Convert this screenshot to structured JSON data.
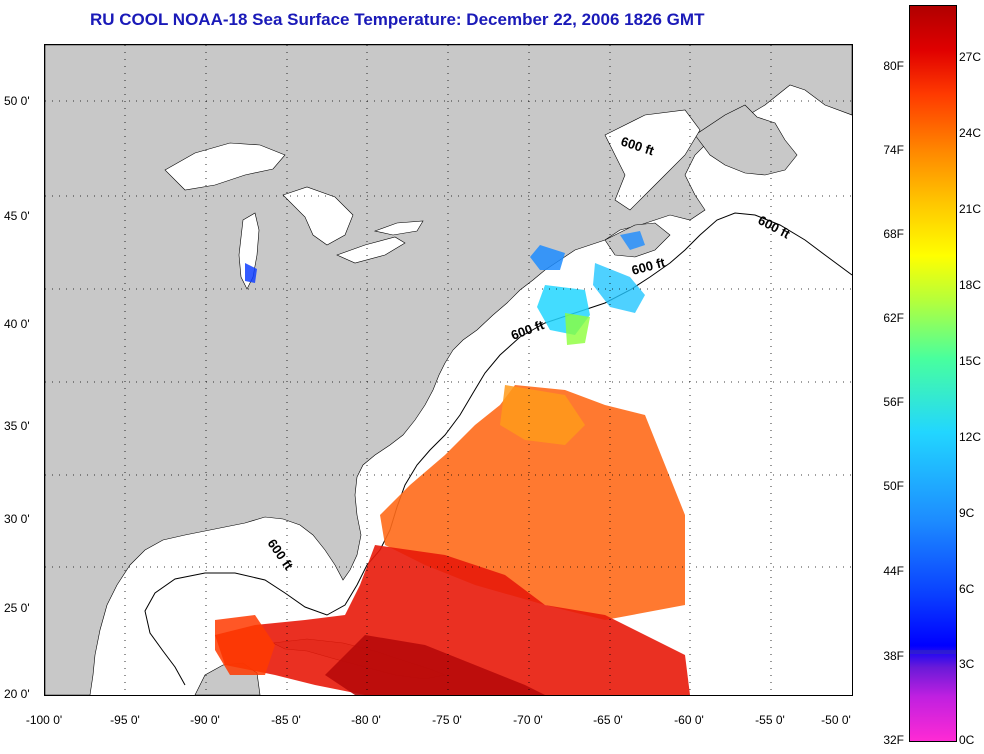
{
  "title": "RU COOL  NOAA-18  Sea Surface Temperature:  December 22, 2006 1826 GMT",
  "map": {
    "lon_labels": [
      "-100 0'",
      "-95 0'",
      "-90 0'",
      "-85 0'",
      "-80 0'",
      "-75 0'",
      "-70 0'",
      "-65 0'",
      "-60 0'",
      "-55 0'",
      "-50 0'"
    ],
    "lat_labels": [
      "50 0'",
      "45 0'",
      "40 0'",
      "35 0'",
      "30 0'",
      "25 0'",
      "20 0'"
    ],
    "contour_labels": [
      "600 ft",
      "600 ft",
      "600 ft",
      "600 ft",
      "600 ft"
    ],
    "colors": {
      "land": "#c8c8c8",
      "ocean": "#ffffff",
      "border": "#000000"
    }
  },
  "colorbar": {
    "fahrenheit": [
      "80F",
      "74F",
      "68F",
      "62F",
      "56F",
      "50F",
      "44F",
      "38F",
      "32F"
    ],
    "celsius": [
      "27C",
      "24C",
      "21C",
      "18C",
      "15C",
      "12C",
      "9C",
      "6C",
      "3C",
      "0C"
    ]
  }
}
